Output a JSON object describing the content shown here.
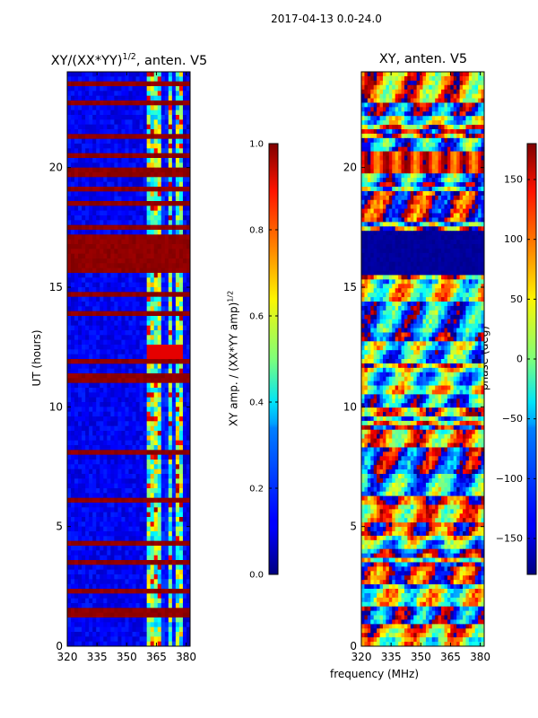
{
  "suptitle": "2017-04-13 0.0-24.0",
  "chart_data": [
    {
      "type": "heatmap",
      "title_text": "XY/(XX*YY)",
      "title_sup": "1/2",
      "title_suffix": ", anten. V5",
      "xlabel": "",
      "ylabel": "UT (hours)",
      "xlim": [
        320,
        382
      ],
      "ylim": [
        0,
        24
      ],
      "x_ticks": [
        320,
        335,
        350,
        365,
        380
      ],
      "y_ticks": [
        0,
        5,
        10,
        15,
        20
      ],
      "colorbar": {
        "label_text": "XY amp. / (XX*YY amp)",
        "label_sup": "1/2",
        "range": [
          0.0,
          1.0
        ],
        "ticks": [
          "0.0",
          "0.2",
          "0.4",
          "0.6",
          "0.8",
          "1.0"
        ],
        "colormap": "jet"
      }
    },
    {
      "type": "heatmap",
      "title_text": "XY, anten. V5",
      "xlabel": "frequency (MHz)",
      "ylabel": "",
      "xlim": [
        320,
        382
      ],
      "ylim": [
        0,
        24
      ],
      "x_ticks": [
        320,
        335,
        350,
        365,
        380
      ],
      "y_ticks": [
        0,
        5,
        10,
        15,
        20
      ],
      "colorbar": {
        "label_text": "phase (deg)",
        "range": [
          -180,
          180
        ],
        "ticks": [
          "−150",
          "−100",
          "−50",
          "0",
          "50",
          "100",
          "150"
        ],
        "tick_values": [
          -150,
          -100,
          -50,
          0,
          50,
          100,
          150
        ],
        "colormap": "jet"
      }
    }
  ]
}
